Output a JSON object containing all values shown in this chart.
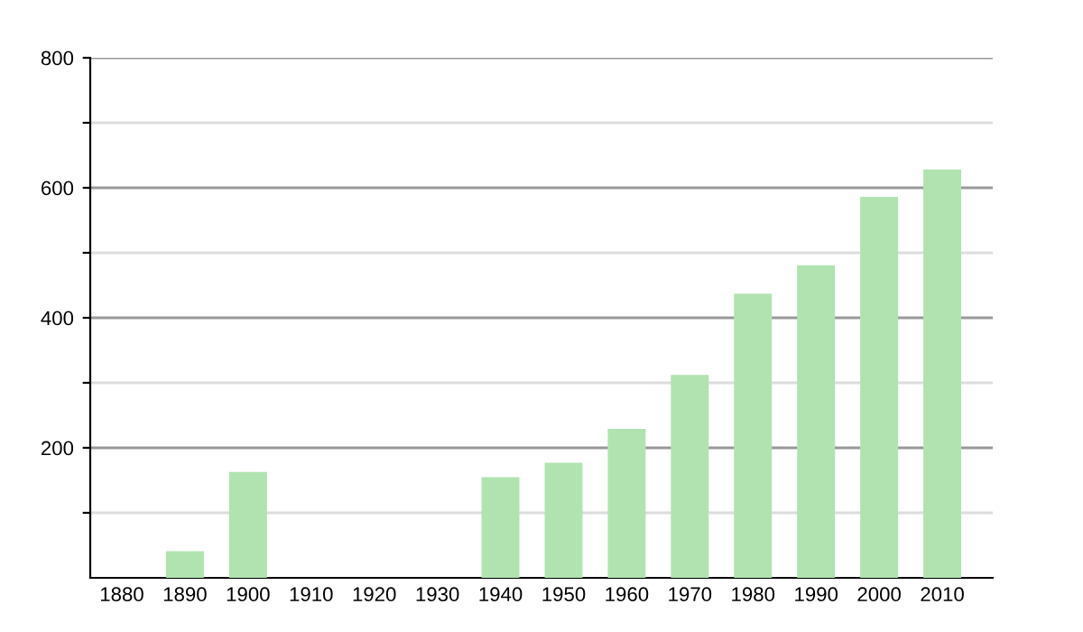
{
  "chart_data": {
    "type": "bar",
    "categories": [
      "1880",
      "1890",
      "1900",
      "1910",
      "1920",
      "1930",
      "1940",
      "1950",
      "1960",
      "1970",
      "1980",
      "1990",
      "2000",
      "2010"
    ],
    "values": [
      null,
      41,
      163,
      null,
      null,
      null,
      155,
      177,
      229,
      312,
      437,
      481,
      586,
      628
    ],
    "color": "#b1e3b1",
    "ylim": [
      0,
      800
    ],
    "yticks": [
      {
        "value": 100,
        "label": null
      },
      200,
      {
        "value": 300,
        "label": null
      },
      400,
      {
        "value": 500,
        "label": null
      },
      600,
      {
        "value": 700,
        "label": null
      },
      800
    ],
    "grid": "y"
  }
}
